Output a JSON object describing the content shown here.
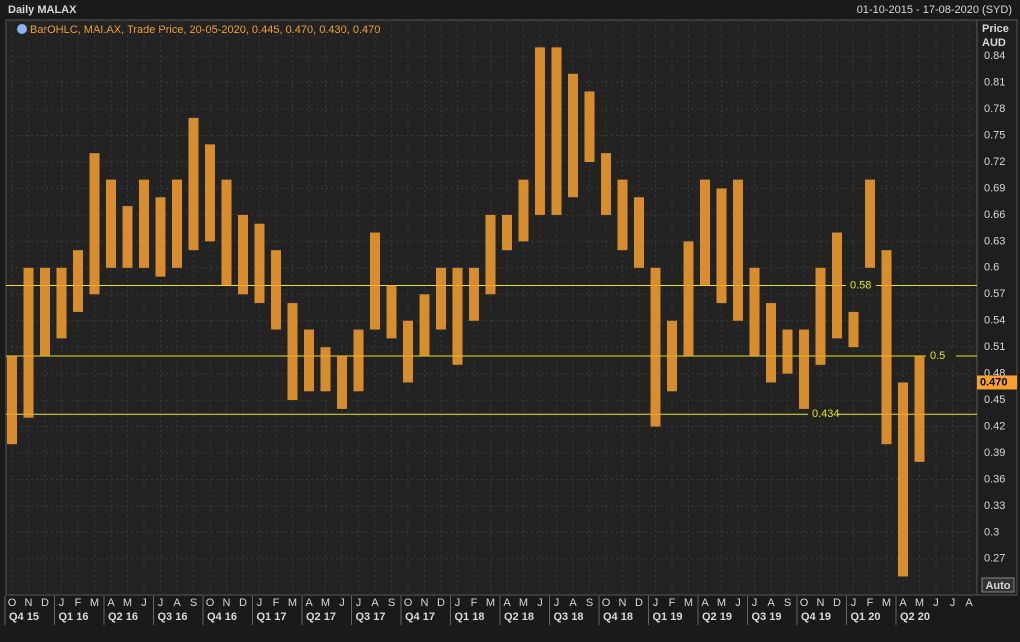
{
  "header": {
    "title": "Daily MALAX",
    "range": "01-10-2015 - 17-08-2020 (SYD)",
    "legend": "BarOHLC, MAI.AX, Trade Price, 20-05-2020, 0.445, 0.470, 0.430, 0.470",
    "axis_title": [
      "Price",
      "AUD"
    ],
    "scale_button": "Auto"
  },
  "chart_data": {
    "type": "range-bar",
    "categories": [
      "O",
      "N",
      "D",
      "J",
      "F",
      "M",
      "A",
      "M",
      "J",
      "J",
      "A",
      "S",
      "O",
      "N",
      "D",
      "J",
      "F",
      "M",
      "A",
      "M",
      "J",
      "J",
      "A",
      "S",
      "O",
      "N",
      "D",
      "J",
      "F",
      "M",
      "A",
      "M",
      "J",
      "J",
      "A",
      "S",
      "O",
      "N",
      "D",
      "J",
      "F",
      "M",
      "A",
      "M",
      "J",
      "J",
      "A",
      "S",
      "O",
      "N",
      "D",
      "J",
      "F",
      "M",
      "A",
      "M",
      "J",
      "J",
      "A"
    ],
    "quarters": [
      "Q4 15",
      "Q1 16",
      "Q2 16",
      "Q3 16",
      "Q4 16",
      "Q1 17",
      "Q2 17",
      "Q3 17",
      "Q4 17",
      "Q1 18",
      "Q2 18",
      "Q3 18",
      "Q4 18",
      "Q1 19",
      "Q2 19",
      "Q3 19",
      "Q4 19",
      "Q1 20",
      "Q2 20"
    ],
    "series": [
      {
        "name": "High",
        "color": "#f7a030",
        "values": [
          0.5,
          0.6,
          0.6,
          0.6,
          0.62,
          0.73,
          0.7,
          0.67,
          0.7,
          0.68,
          0.7,
          0.77,
          0.74,
          0.7,
          0.66,
          0.65,
          0.62,
          0.56,
          0.53,
          0.51,
          0.5,
          0.53,
          0.64,
          0.58,
          0.54,
          0.57,
          0.6,
          0.6,
          0.6,
          0.66,
          0.66,
          0.7,
          0.85,
          0.85,
          0.82,
          0.8,
          0.73,
          0.7,
          0.68,
          0.6,
          0.54,
          0.63,
          0.7,
          0.69,
          0.7,
          0.6,
          0.56,
          0.53,
          0.53,
          0.6,
          0.64,
          0.55,
          0.7,
          0.62,
          0.47,
          0.5,
          null,
          null,
          null
        ]
      },
      {
        "name": "Low",
        "color": "#f7a030",
        "values": [
          0.4,
          0.43,
          0.5,
          0.52,
          0.55,
          0.57,
          0.6,
          0.6,
          0.6,
          0.59,
          0.6,
          0.62,
          0.63,
          0.58,
          0.57,
          0.56,
          0.53,
          0.45,
          0.46,
          0.46,
          0.44,
          0.46,
          0.53,
          0.52,
          0.47,
          0.5,
          0.53,
          0.49,
          0.54,
          0.57,
          0.62,
          0.63,
          0.66,
          0.66,
          0.68,
          0.72,
          0.66,
          0.62,
          0.6,
          0.42,
          0.46,
          0.5,
          0.58,
          0.56,
          0.54,
          0.5,
          0.47,
          0.48,
          0.44,
          0.49,
          0.52,
          0.51,
          0.6,
          0.4,
          0.25,
          0.38,
          null,
          null,
          null
        ]
      }
    ],
    "ylim": [
      0.229,
      0.881
    ],
    "yticks": [
      0.27,
      0.3,
      0.33,
      0.36,
      0.39,
      0.42,
      0.45,
      0.48,
      0.51,
      0.54,
      0.57,
      0.6,
      0.63,
      0.66,
      0.69,
      0.72,
      0.75,
      0.78,
      0.81,
      0.84
    ],
    "levels": [
      0.58,
      0.5,
      0.434
    ],
    "level_color": "#e6e619",
    "last": {
      "value": 0.47,
      "label": "0.470"
    },
    "grid": true
  }
}
